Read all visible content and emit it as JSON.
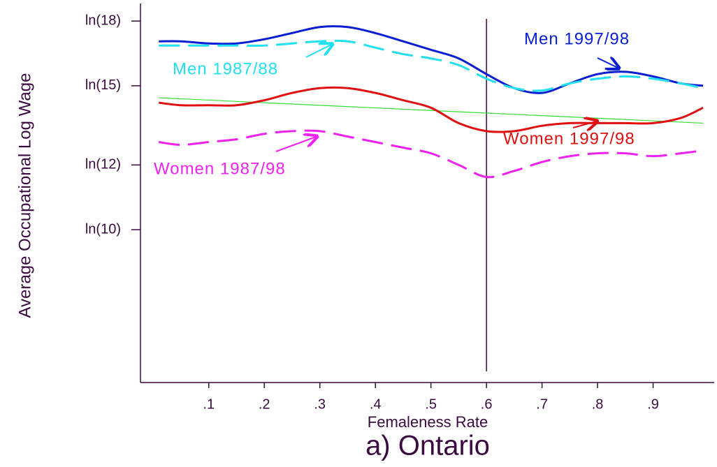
{
  "chart_data": {
    "type": "line",
    "title": "a) Ontario",
    "xlabel": "Femaleness Rate",
    "ylabel": "Average Occupational Log Wage",
    "x": [
      0.01,
      0.05,
      0.1,
      0.15,
      0.2,
      0.25,
      0.3,
      0.35,
      0.4,
      0.45,
      0.5,
      0.55,
      0.6,
      0.65,
      0.7,
      0.75,
      0.8,
      0.85,
      0.9,
      0.95,
      0.99
    ],
    "series": [
      {
        "name": "Men 1997/98",
        "color": "#0a1ed2",
        "dash": false,
        "values": [
          17.0,
          17.0,
          16.9,
          16.9,
          17.1,
          17.4,
          17.7,
          17.7,
          17.4,
          17.0,
          16.6,
          16.2,
          15.5,
          14.9,
          14.7,
          15.1,
          15.5,
          15.6,
          15.4,
          15.1,
          15.0
        ]
      },
      {
        "name": "Men 1987/88",
        "color": "#22e0f0",
        "dash": true,
        "values": [
          16.8,
          16.8,
          16.8,
          16.8,
          16.8,
          16.9,
          17.0,
          17.0,
          16.7,
          16.4,
          16.2,
          15.9,
          15.3,
          14.9,
          14.8,
          15.1,
          15.3,
          15.4,
          15.3,
          15.1,
          14.9
        ]
      },
      {
        "name": "Women 1997/98",
        "color": "#e01010",
        "dash": false,
        "values": [
          14.3,
          14.2,
          14.2,
          14.2,
          14.4,
          14.7,
          14.9,
          14.9,
          14.7,
          14.4,
          14.1,
          13.5,
          13.2,
          13.2,
          13.4,
          13.5,
          13.5,
          13.5,
          13.5,
          13.7,
          14.1
        ]
      },
      {
        "name": "Women 1987/98",
        "color": "#ee22ee",
        "dash": true,
        "values": [
          12.8,
          12.7,
          12.8,
          12.9,
          13.1,
          13.2,
          13.2,
          13.0,
          12.8,
          12.6,
          12.4,
          12.0,
          11.6,
          11.8,
          12.1,
          12.3,
          12.4,
          12.4,
          12.3,
          12.4,
          12.5
        ]
      }
    ],
    "trend": {
      "x": [
        0.01,
        0.99
      ],
      "values": [
        14.5,
        13.5
      ],
      "color": "#33dd33"
    },
    "vline": 0.6,
    "ylog": true,
    "xlim": [
      -0.023,
      1.01
    ],
    "ylim": [
      6.5,
      19.1
    ],
    "xticks": [
      {
        "value": 0.1,
        "label": ".1"
      },
      {
        "value": 0.2,
        "label": ".2"
      },
      {
        "value": 0.3,
        "label": ".3"
      },
      {
        "value": 0.4,
        "label": ".4"
      },
      {
        "value": 0.5,
        "label": ".5"
      },
      {
        "value": 0.6,
        "label": ".6"
      },
      {
        "value": 0.7,
        "label": ".7"
      },
      {
        "value": 0.8,
        "label": ".8"
      },
      {
        "value": 0.9,
        "label": ".9"
      }
    ],
    "yticks": [
      {
        "value": 10,
        "label": "ln(10)"
      },
      {
        "value": 12,
        "label": "ln(12)"
      },
      {
        "value": 15,
        "label": "ln(15)"
      },
      {
        "value": 18,
        "label": "ln(18)"
      }
    ]
  }
}
